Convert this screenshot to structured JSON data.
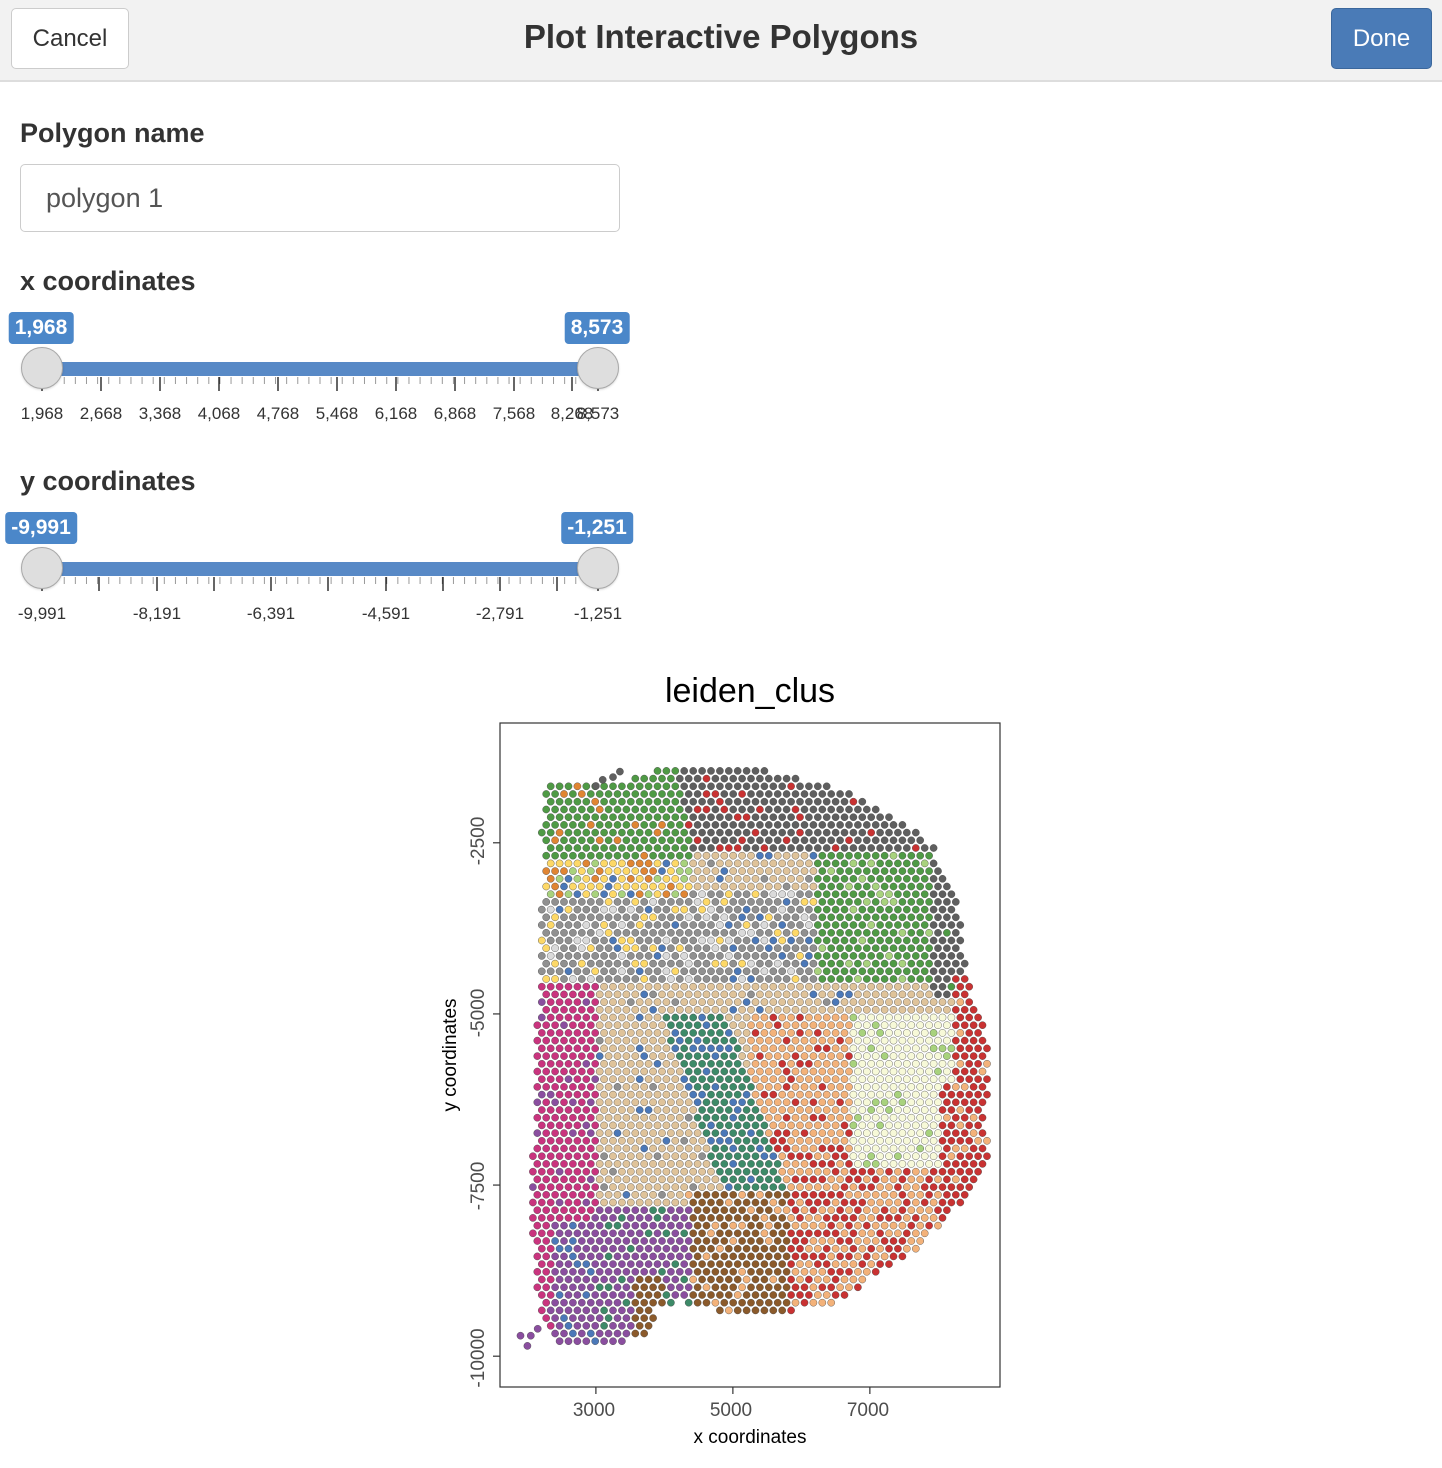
{
  "header": {
    "title": "Plot Interactive Polygons",
    "cancel_label": "Cancel",
    "done_label": "Done"
  },
  "form": {
    "polygon_name_label": "Polygon name",
    "polygon_name_value": "polygon 1"
  },
  "x_slider": {
    "label": "x coordinates",
    "min": 1968,
    "max": 8573,
    "value_low": 1968,
    "value_high": 8573,
    "low_text": "1,968",
    "high_text": "8,573",
    "grid_labels": [
      "1,968",
      "2,668",
      "3,368",
      "4,068",
      "4,768",
      "5,468",
      "6,168",
      "6,868",
      "7,568",
      "8,268",
      "8,573"
    ]
  },
  "y_slider": {
    "label": "y coordinates",
    "min": -9991,
    "max": -1251,
    "value_low": -9991,
    "value_high": -1251,
    "low_text": "-9,991",
    "high_text": "-1,251",
    "grid_labels": [
      "-9,991",
      "-8,191",
      "-6,391",
      "-4,591",
      "-2,791",
      "-1,251"
    ]
  },
  "colors": {
    "accent": "#4b87c9",
    "track": "#5889c6",
    "done_button": "#4a7bb7"
  },
  "chart_data": {
    "type": "scatter",
    "title": "leiden_clus",
    "xlabel": "x coordinates",
    "ylabel": "y coordinates",
    "xlim": [
      1600,
      8900
    ],
    "ylim": [
      -10450,
      -750
    ],
    "x_ticks": [
      3000,
      5000,
      7000
    ],
    "y_ticks": [
      -2500,
      -5000,
      -7500,
      -10000
    ],
    "x_tick_labels": [
      "3000",
      "5000",
      "7000"
    ],
    "y_tick_labels": [
      "-2500",
      "-5000",
      "-7500",
      "-10000"
    ],
    "grid": false,
    "legend": "none",
    "point_spacing": 130,
    "clusters": [
      {
        "id": "c1",
        "color": "#4f9a45",
        "region": "top-left dorsal band"
      },
      {
        "id": "c2",
        "color": "#5f5f5f",
        "region": "top-right and right rim"
      },
      {
        "id": "c3",
        "color": "#a8d27d",
        "region": "upper-middle band"
      },
      {
        "id": "c4",
        "color": "#fdd867",
        "region": "upper-left band"
      },
      {
        "id": "c5",
        "color": "#909090",
        "region": "central-upper band"
      },
      {
        "id": "c6",
        "color": "#e08533",
        "region": "scattered upper-left"
      },
      {
        "id": "c7",
        "color": "#4b78b8",
        "region": "scattered left and center"
      },
      {
        "id": "c8",
        "color": "#c9347e",
        "region": "left lateral region"
      },
      {
        "id": "c9",
        "color": "#dfc39a",
        "region": "central mass"
      },
      {
        "id": "c10",
        "color": "#3d8a68",
        "region": "central-lower stripe"
      },
      {
        "id": "c11",
        "color": "#f3b27a",
        "region": "lower-right region"
      },
      {
        "id": "c12",
        "color": "#c93232",
        "region": "lower-right and bottom rim"
      },
      {
        "id": "c13",
        "color": "#8a4e9f",
        "region": "bottom-left region"
      },
      {
        "id": "c14",
        "color": "#8b5a2b",
        "region": "lower-middle patch"
      },
      {
        "id": "c15",
        "color": "#f7f9d8",
        "region": "right-middle patch"
      },
      {
        "id": "c16",
        "color": "#dadada",
        "region": "central-upper light patch"
      }
    ]
  }
}
